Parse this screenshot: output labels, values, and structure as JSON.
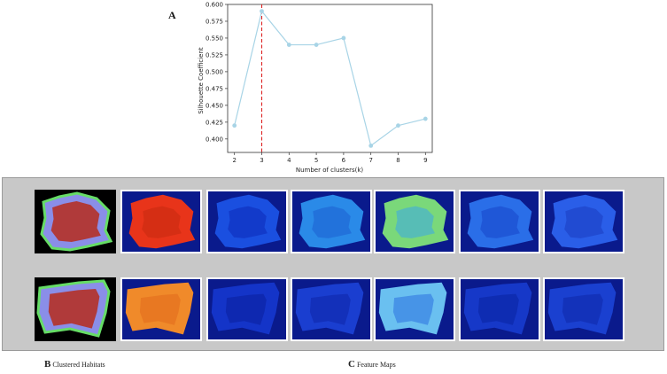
{
  "panels": {
    "a_letter": "A",
    "b_letter": "B",
    "b_caption": "Clustered Habitats",
    "c_letter": "C",
    "c_caption": "Feature Maps"
  },
  "chart_data": {
    "type": "line",
    "title": "",
    "xlabel": "Number of clusters(k)",
    "ylabel": "Silhouette Coefficient",
    "x": [
      2,
      3,
      4,
      5,
      6,
      7,
      8,
      9
    ],
    "series": [
      {
        "values": [
          0.42,
          0.59,
          0.54,
          0.54,
          0.55,
          0.39,
          0.42,
          0.43
        ]
      }
    ],
    "xlim": [
      1.75,
      9.25
    ],
    "ylim": [
      0.38,
      0.6
    ],
    "xticks": [
      "2",
      "3",
      "4",
      "5",
      "6",
      "7",
      "8",
      "9"
    ],
    "yticks": [
      "0.400",
      "0.425",
      "0.450",
      "0.475",
      "0.500",
      "0.525",
      "0.550",
      "0.575",
      "0.600"
    ],
    "grid": false,
    "annotations": [
      {
        "type": "vline",
        "x": 3,
        "style": "dashed",
        "color": "#dd2222"
      }
    ],
    "line_color": "#a8d4e6"
  },
  "colors": {
    "habitat_background": "#000000",
    "habitat_core": "#b03a3a",
    "habitat_rim": "#8a8ee8",
    "habitat_edge": "#66dd66",
    "map_background": "#0a1a8c"
  }
}
